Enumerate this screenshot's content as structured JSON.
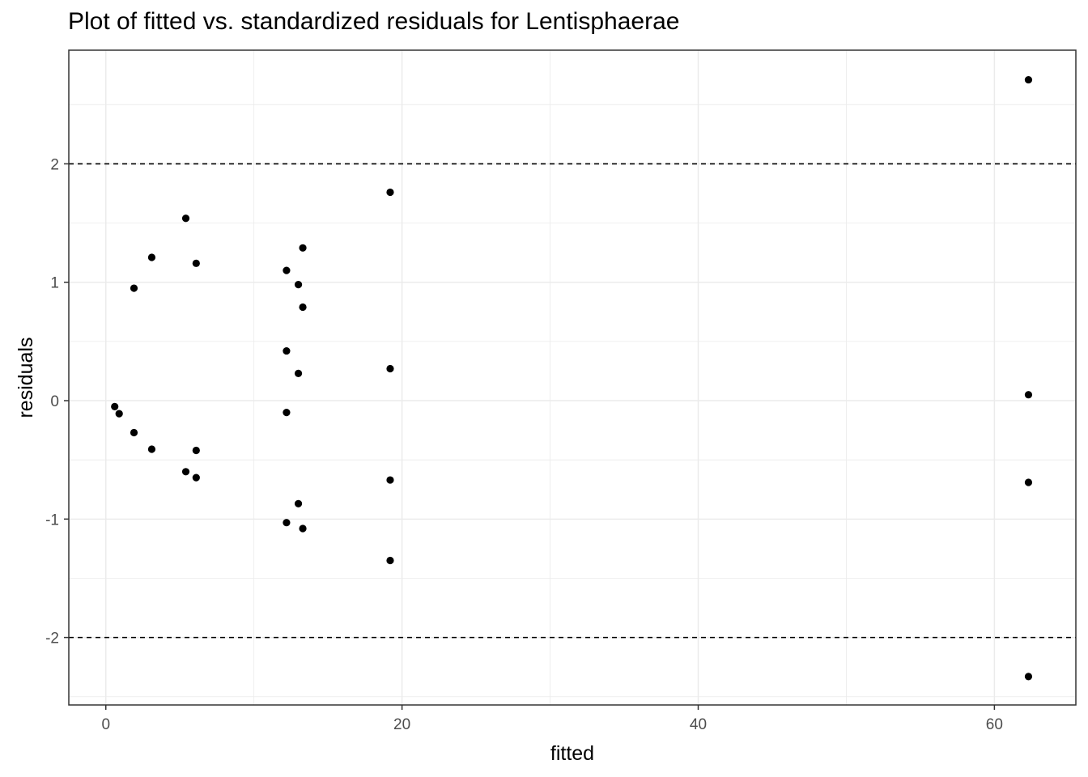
{
  "chart_data": {
    "type": "scatter",
    "title": "Plot of fitted vs. standardized residuals for Lentisphaerae",
    "xlabel": "fitted",
    "ylabel": "residuals",
    "xlim": [
      -2.5,
      65.5
    ],
    "ylim": [
      -2.57,
      2.96
    ],
    "x_ticks": [
      0,
      20,
      40,
      60
    ],
    "x_tick_labels": [
      "0",
      "20",
      "40",
      "60"
    ],
    "y_ticks": [
      -2,
      -1,
      0,
      1,
      2
    ],
    "y_tick_labels": [
      "-2",
      "-1",
      "0",
      "1",
      "2"
    ],
    "reference_lines_y": [
      -2,
      2
    ],
    "grid": true,
    "points": [
      {
        "x": 0.6,
        "y": -0.05
      },
      {
        "x": 0.9,
        "y": -0.11
      },
      {
        "x": 1.9,
        "y": 0.95
      },
      {
        "x": 1.9,
        "y": -0.27
      },
      {
        "x": 3.1,
        "y": 1.21
      },
      {
        "x": 3.1,
        "y": -0.41
      },
      {
        "x": 5.4,
        "y": 1.54
      },
      {
        "x": 5.4,
        "y": -0.6
      },
      {
        "x": 6.1,
        "y": 1.16
      },
      {
        "x": 6.1,
        "y": -0.42
      },
      {
        "x": 6.1,
        "y": -0.65
      },
      {
        "x": 12.2,
        "y": 1.1
      },
      {
        "x": 12.2,
        "y": 0.42
      },
      {
        "x": 12.2,
        "y": -0.1
      },
      {
        "x": 12.2,
        "y": -1.03
      },
      {
        "x": 13.0,
        "y": 0.98
      },
      {
        "x": 13.0,
        "y": 0.23
      },
      {
        "x": 13.0,
        "y": -0.87
      },
      {
        "x": 13.3,
        "y": 1.29
      },
      {
        "x": 13.3,
        "y": 0.79
      },
      {
        "x": 13.3,
        "y": -1.08
      },
      {
        "x": 19.2,
        "y": 1.76
      },
      {
        "x": 19.2,
        "y": 0.27
      },
      {
        "x": 19.2,
        "y": -0.67
      },
      {
        "x": 19.2,
        "y": -1.35
      },
      {
        "x": 62.3,
        "y": 2.71
      },
      {
        "x": 62.3,
        "y": 0.05
      },
      {
        "x": 62.3,
        "y": -0.69
      },
      {
        "x": 62.3,
        "y": -2.33
      }
    ],
    "colors": {
      "point": "#000000",
      "grid": "#ebebeb",
      "panel_border": "#333333",
      "reference_line": "#000000"
    }
  }
}
